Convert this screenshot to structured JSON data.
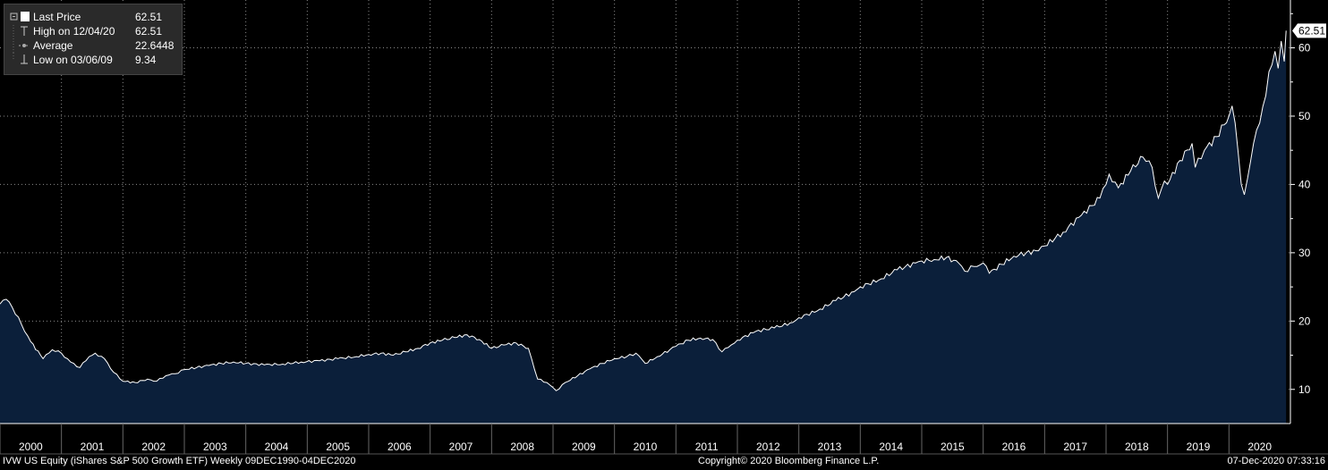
{
  "legend": {
    "rows": [
      {
        "label": "Last Price",
        "value": "62.51",
        "icon": "filled-square-icon"
      },
      {
        "label": "High on 12/04/20",
        "value": "62.51",
        "icon": "high-marker-icon"
      },
      {
        "label": "Average",
        "value": "22.6448",
        "icon": "average-line-icon"
      },
      {
        "label": "Low on 03/06/09",
        "value": "9.34",
        "icon": "low-marker-icon"
      }
    ]
  },
  "last_price_tag": "62.51",
  "footer": {
    "left": "IVW US Equity (iShares S&P 500 Growth ETF)  Weekly 09DEC1990-04DEC2020",
    "center": "Copyright© 2020 Bloomberg Finance L.P.",
    "right": "07-Dec-2020 07:33:16"
  },
  "colors": {
    "background": "#000000",
    "area_fill": "#0b1f3a",
    "line": "#ffffff",
    "grid": "#8a8a8a",
    "legend_bg": "#2a2a2a"
  },
  "chart_data": {
    "type": "area",
    "title": "",
    "xlabel": "",
    "ylabel": "",
    "ylim": [
      5,
      67
    ],
    "xlim": [
      2000.0,
      2021.0
    ],
    "y_ticks": [
      10,
      20,
      30,
      40,
      50,
      60
    ],
    "x_tick_labels": [
      "2000",
      "2001",
      "2002",
      "2003",
      "2004",
      "2005",
      "2006",
      "2007",
      "2008",
      "2009",
      "2010",
      "2011",
      "2012",
      "2013",
      "2014",
      "2015",
      "2016",
      "2017",
      "2018",
      "2019",
      "2020"
    ],
    "grid": true,
    "legend_position": "top-left",
    "y_axis_side": "right",
    "series": [
      {
        "name": "Last Price",
        "x": [
          2000.0,
          2000.1,
          2000.2,
          2000.35,
          2000.5,
          2000.7,
          2000.85,
          2001.0,
          2001.15,
          2001.3,
          2001.45,
          2001.55,
          2001.7,
          2001.85,
          2002.0,
          2002.2,
          2002.4,
          2002.55,
          2002.7,
          2002.85,
          2003.0,
          2003.2,
          2003.4,
          2003.6,
          2003.8,
          2004.0,
          2004.3,
          2004.6,
          2004.9,
          2005.2,
          2005.5,
          2005.8,
          2006.0,
          2006.2,
          2006.4,
          2006.6,
          2006.8,
          2007.0,
          2007.2,
          2007.4,
          2007.6,
          2007.8,
          2008.0,
          2008.2,
          2008.4,
          2008.6,
          2008.75,
          2008.9,
          2009.05,
          2009.2,
          2009.4,
          2009.6,
          2009.8,
          2010.0,
          2010.2,
          2010.35,
          2010.5,
          2010.7,
          2010.9,
          2011.0,
          2011.2,
          2011.4,
          2011.6,
          2011.75,
          2011.9,
          2012.0,
          2012.3,
          2012.6,
          2012.9,
          2013.0,
          2013.3,
          2013.6,
          2013.9,
          2014.0,
          2014.3,
          2014.6,
          2014.9,
          2015.0,
          2015.2,
          2015.4,
          2015.6,
          2015.7,
          2015.85,
          2016.0,
          2016.1,
          2016.3,
          2016.5,
          2016.7,
          2016.9,
          2017.0,
          2017.3,
          2017.6,
          2017.9,
          2018.0,
          2018.05,
          2018.2,
          2018.4,
          2018.6,
          2018.75,
          2018.85,
          2018.95,
          2019.0,
          2019.2,
          2019.4,
          2019.45,
          2019.6,
          2019.8,
          2020.0,
          2020.05,
          2020.1,
          2020.2,
          2020.25,
          2020.4,
          2020.5,
          2020.6,
          2020.65,
          2020.75,
          2020.8,
          2020.85,
          2020.9,
          2020.93
        ],
        "values": [
          22.5,
          23.2,
          22.0,
          19.5,
          17.0,
          14.5,
          15.8,
          15.3,
          14.0,
          13.2,
          14.8,
          15.3,
          14.5,
          12.5,
          11.2,
          11.0,
          11.5,
          11.2,
          12.0,
          12.3,
          12.9,
          13.2,
          13.5,
          13.8,
          14.0,
          13.8,
          13.6,
          13.7,
          14.0,
          14.2,
          14.5,
          14.8,
          15.1,
          15.3,
          15.0,
          15.5,
          16.0,
          16.8,
          17.2,
          17.6,
          18.0,
          17.3,
          16.0,
          16.5,
          16.8,
          16.0,
          11.5,
          11.0,
          9.8,
          11.0,
          12.0,
          13.0,
          13.8,
          14.5,
          14.8,
          15.3,
          13.8,
          14.8,
          15.8,
          16.3,
          17.2,
          17.5,
          17.3,
          15.5,
          16.5,
          17.2,
          18.5,
          19.0,
          19.8,
          20.5,
          21.5,
          23.0,
          24.3,
          25.0,
          26.0,
          27.5,
          28.5,
          28.8,
          29.0,
          29.3,
          28.5,
          27.3,
          28.0,
          28.5,
          27.0,
          28.3,
          29.5,
          30.0,
          30.3,
          31.0,
          33.0,
          35.5,
          38.0,
          40.0,
          41.5,
          39.5,
          42.0,
          44.0,
          42.5,
          38.0,
          40.5,
          40.0,
          43.5,
          46.0,
          42.5,
          45.0,
          47.0,
          50.0,
          51.5,
          49.0,
          40.0,
          38.5,
          46.0,
          49.0,
          53.0,
          56.5,
          59.5,
          57.0,
          61.0,
          58.0,
          62.51
        ]
      }
    ]
  }
}
